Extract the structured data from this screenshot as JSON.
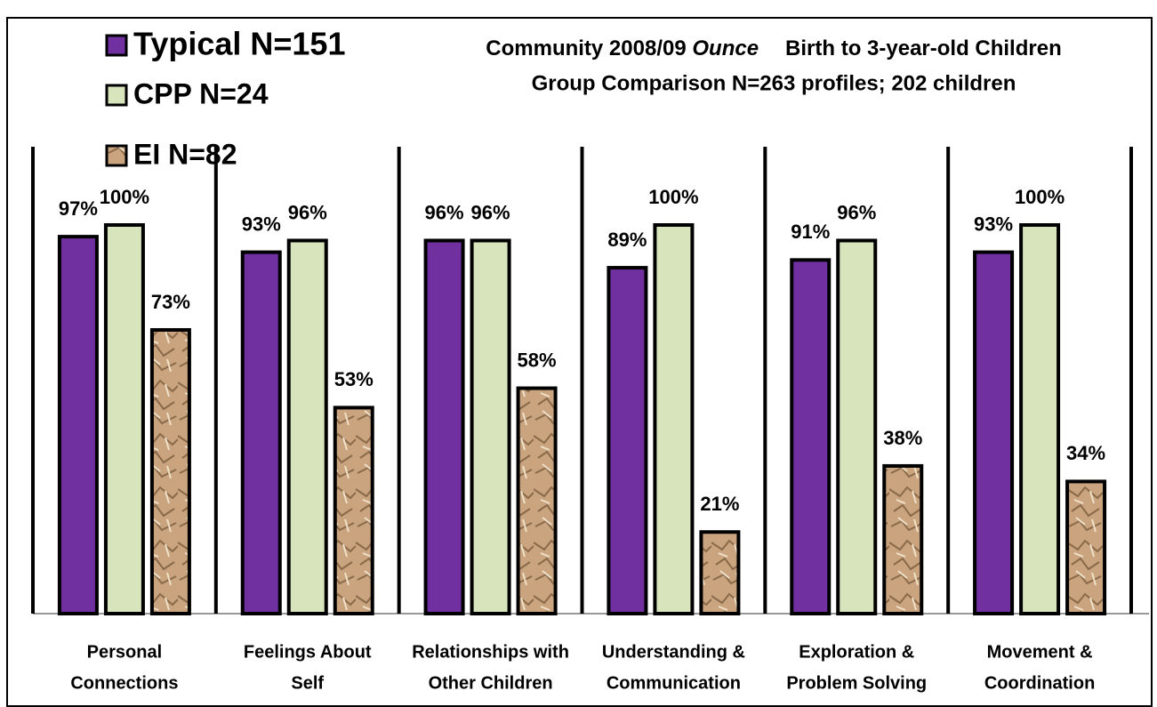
{
  "chart_data": {
    "type": "bar",
    "title": [
      "Community 2008/09",
      "Ounce",
      "Birth to 3-year-old Children"
    ],
    "subtitle": "Group Comparison  N=263 profiles; 202 children",
    "categories": [
      [
        "Personal",
        "Connections"
      ],
      [
        "Feelings About",
        "Self"
      ],
      [
        "Relationships with",
        "Other Children"
      ],
      [
        "Understanding &",
        "Communication"
      ],
      [
        "Exploration &",
        "Problem Solving"
      ],
      [
        "Movement &",
        "Coordination"
      ]
    ],
    "series": [
      {
        "name": "Typical N=151",
        "color": "#7030a0",
        "values": [
          97,
          93,
          96,
          89,
          91,
          93
        ],
        "value_labels": [
          "97%",
          "93%",
          "96%",
          "89%",
          "91%",
          "93%"
        ]
      },
      {
        "name": "CPP N=24",
        "color": "#d8e4bc",
        "values": [
          100,
          96,
          96,
          100,
          96,
          100
        ],
        "value_labels": [
          "100%",
          "96%",
          "96%",
          "100%",
          "96%",
          "100%"
        ]
      },
      {
        "name": "EI N=82",
        "color": "#c9a47e",
        "texture": true,
        "values": [
          73,
          53,
          58,
          21,
          38,
          34
        ],
        "value_labels": [
          "73%",
          "53%",
          "58%",
          "21%",
          "38%",
          "34%"
        ]
      }
    ],
    "ylim": [
      0,
      100
    ]
  }
}
